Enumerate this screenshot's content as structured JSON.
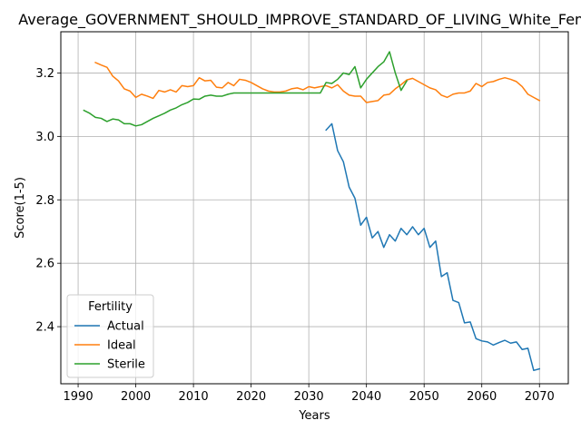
{
  "chart_data": {
    "type": "line",
    "title": "Average_GOVERNMENT_SHOULD_IMPROVE_STANDARD_OF_LIVING_White_Female",
    "xlabel": "Years",
    "ylabel": "Score(1-5)",
    "xlim": [
      1987,
      2075
    ],
    "ylim": [
      2.22,
      3.33
    ],
    "xticks": [
      1990,
      2000,
      2010,
      2020,
      2030,
      2040,
      2050,
      2060,
      2070
    ],
    "yticks": [
      2.4,
      2.6,
      2.8,
      3.0,
      3.2
    ],
    "ytick_labels": [
      "2.4",
      "2.6",
      "2.8",
      "3.0",
      "3.2"
    ],
    "grid": true,
    "legend": {
      "title": "Fertility",
      "placement": "lower-left"
    },
    "series": [
      {
        "name": "Actual",
        "color": "#1f77b4",
        "x": [
          2033,
          2034,
          2035,
          2036,
          2037,
          2038,
          2039,
          2040,
          2041,
          2042,
          2043,
          2044,
          2045,
          2046,
          2047,
          2048,
          2049,
          2050,
          2051,
          2052,
          2053,
          2054,
          2055,
          2056,
          2057,
          2058,
          2059,
          2060,
          2061,
          2062,
          2063,
          2064,
          2065,
          2066,
          2067,
          2068,
          2069,
          2070
        ],
        "values": [
          3.02,
          3.04,
          2.955,
          2.92,
          2.84,
          2.805,
          2.72,
          2.745,
          2.68,
          2.7,
          2.65,
          2.69,
          2.67,
          2.71,
          2.69,
          2.715,
          2.69,
          2.71,
          2.65,
          2.67,
          2.558,
          2.57,
          2.483,
          2.476,
          2.412,
          2.415,
          2.362,
          2.355,
          2.352,
          2.342,
          2.35,
          2.357,
          2.348,
          2.352,
          2.328,
          2.332,
          2.262,
          2.267
        ]
      },
      {
        "name": "Ideal",
        "color": "#ff7f0e",
        "x": [
          1993,
          1994,
          1995,
          1996,
          1997,
          1998,
          1999,
          2000,
          2001,
          2002,
          2003,
          2004,
          2005,
          2006,
          2007,
          2008,
          2009,
          2010,
          2011,
          2012,
          2013,
          2014,
          2015,
          2016,
          2017,
          2018,
          2019,
          2020,
          2021,
          2022,
          2023,
          2024,
          2025,
          2026,
          2027,
          2028,
          2029,
          2030,
          2031,
          2032,
          2033,
          2034,
          2035,
          2036,
          2037,
          2038,
          2039,
          2040,
          2041,
          2042,
          2043,
          2044,
          2045,
          2046,
          2047,
          2048,
          2049,
          2050,
          2051,
          2052,
          2053,
          2054,
          2055,
          2056,
          2057,
          2058,
          2059,
          2060,
          2061,
          2062,
          2063,
          2064,
          2065,
          2066,
          2067,
          2068,
          2069,
          2070
        ],
        "values": [
          3.233,
          3.225,
          3.218,
          3.19,
          3.175,
          3.15,
          3.143,
          3.123,
          3.133,
          3.127,
          3.12,
          3.145,
          3.14,
          3.147,
          3.14,
          3.16,
          3.157,
          3.16,
          3.185,
          3.175,
          3.177,
          3.155,
          3.153,
          3.17,
          3.16,
          3.18,
          3.177,
          3.17,
          3.16,
          3.15,
          3.143,
          3.14,
          3.14,
          3.143,
          3.15,
          3.153,
          3.147,
          3.157,
          3.153,
          3.157,
          3.16,
          3.153,
          3.163,
          3.143,
          3.13,
          3.127,
          3.127,
          3.107,
          3.11,
          3.113,
          3.13,
          3.133,
          3.15,
          3.163,
          3.178,
          3.183,
          3.173,
          3.163,
          3.153,
          3.147,
          3.13,
          3.123,
          3.133,
          3.137,
          3.137,
          3.143,
          3.167,
          3.157,
          3.17,
          3.173,
          3.18,
          3.185,
          3.18,
          3.173,
          3.157,
          3.133,
          3.123,
          3.113
        ]
      },
      {
        "name": "Sterile",
        "color": "#2ca02c",
        "x": [
          1991,
          1992,
          1993,
          1994,
          1995,
          1996,
          1997,
          1998,
          1999,
          2000,
          2001,
          2002,
          2003,
          2004,
          2005,
          2006,
          2007,
          2008,
          2009,
          2010,
          2011,
          2012,
          2013,
          2014,
          2015,
          2016,
          2017,
          2018,
          2019,
          2020,
          2021,
          2022,
          2023,
          2024,
          2025,
          2026,
          2027,
          2028,
          2029,
          2030,
          2031,
          2032,
          2033,
          2034,
          2035,
          2036,
          2037,
          2038,
          2039,
          2040,
          2041,
          2042,
          2043,
          2044,
          2045,
          2046,
          2047
        ],
        "values": [
          3.082,
          3.073,
          3.06,
          3.057,
          3.047,
          3.055,
          3.052,
          3.04,
          3.04,
          3.033,
          3.037,
          3.047,
          3.057,
          3.065,
          3.073,
          3.083,
          3.09,
          3.1,
          3.107,
          3.118,
          3.117,
          3.127,
          3.13,
          3.127,
          3.127,
          3.133,
          3.137,
          3.137,
          3.137,
          3.137,
          3.137,
          3.137,
          3.137,
          3.137,
          3.137,
          3.137,
          3.137,
          3.137,
          3.137,
          3.137,
          3.137,
          3.137,
          3.17,
          3.167,
          3.18,
          3.2,
          3.195,
          3.22,
          3.153,
          3.18,
          3.2,
          3.22,
          3.235,
          3.267,
          3.2,
          3.145,
          3.175
        ]
      }
    ]
  }
}
